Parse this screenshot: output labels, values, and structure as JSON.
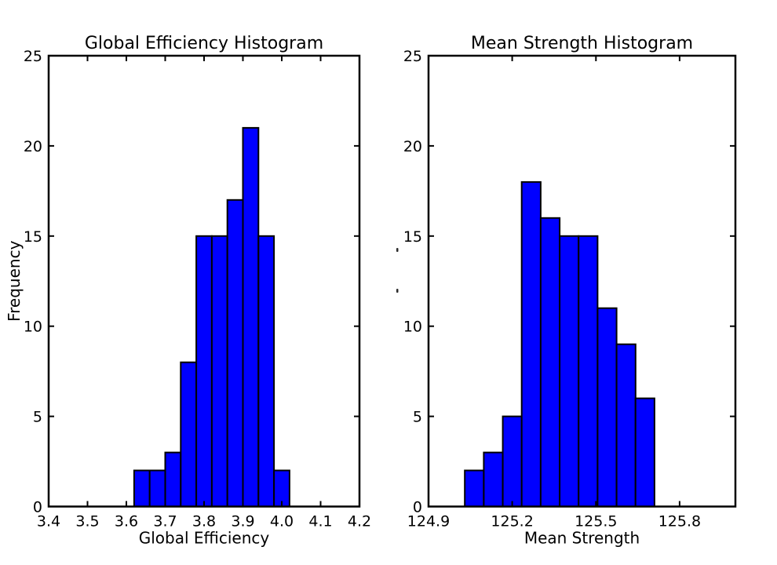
{
  "figure": {
    "background": "#ffffff",
    "bar_fill": "#0000ff",
    "bar_edge": "#000000",
    "axis_color": "#000000",
    "text_color": "#000000"
  },
  "chart_data": [
    {
      "type": "bar",
      "kind": "histogram",
      "title": "Global Efficiency Histogram",
      "xlabel": "Global Efficiency",
      "ylabel": "Frequency",
      "xlim": [
        3.4,
        4.2
      ],
      "ylim": [
        0,
        25
      ],
      "xticks": [
        "3.4",
        "3.5",
        "3.6",
        "3.7",
        "3.8",
        "3.9",
        "4.0",
        "4.1",
        "4.2"
      ],
      "yticks": [
        "0",
        "5",
        "10",
        "15",
        "20",
        "25"
      ],
      "grid": false,
      "legend": null,
      "bin_start": 3.62,
      "bin_width": 0.04,
      "bin_edges": [
        3.62,
        3.66,
        3.7,
        3.74,
        3.78,
        3.82,
        3.86,
        3.9,
        3.94,
        3.98,
        4.02
      ],
      "values": [
        2,
        2,
        3,
        8,
        15,
        15,
        17,
        21,
        15,
        2
      ]
    },
    {
      "type": "bar",
      "kind": "histogram",
      "title": "Mean Strength Histogram",
      "xlabel": "Mean Strength",
      "ylabel": "",
      "xlim": [
        124.9,
        126.0
      ],
      "ylim": [
        0,
        25
      ],
      "xticks": [
        "124.9",
        "125.2",
        "125.5",
        "125.8"
      ],
      "yticks": [
        "0",
        "5",
        "10",
        "15",
        "20",
        "25"
      ],
      "grid": false,
      "legend": null,
      "bin_start": 125.03,
      "bin_width": 0.068,
      "bin_edges": [
        125.03,
        125.098,
        125.166,
        125.234,
        125.302,
        125.37,
        125.438,
        125.506,
        125.574,
        125.642,
        125.71
      ],
      "values": [
        2,
        3,
        5,
        18,
        16,
        15,
        15,
        11,
        9,
        6
      ]
    }
  ]
}
